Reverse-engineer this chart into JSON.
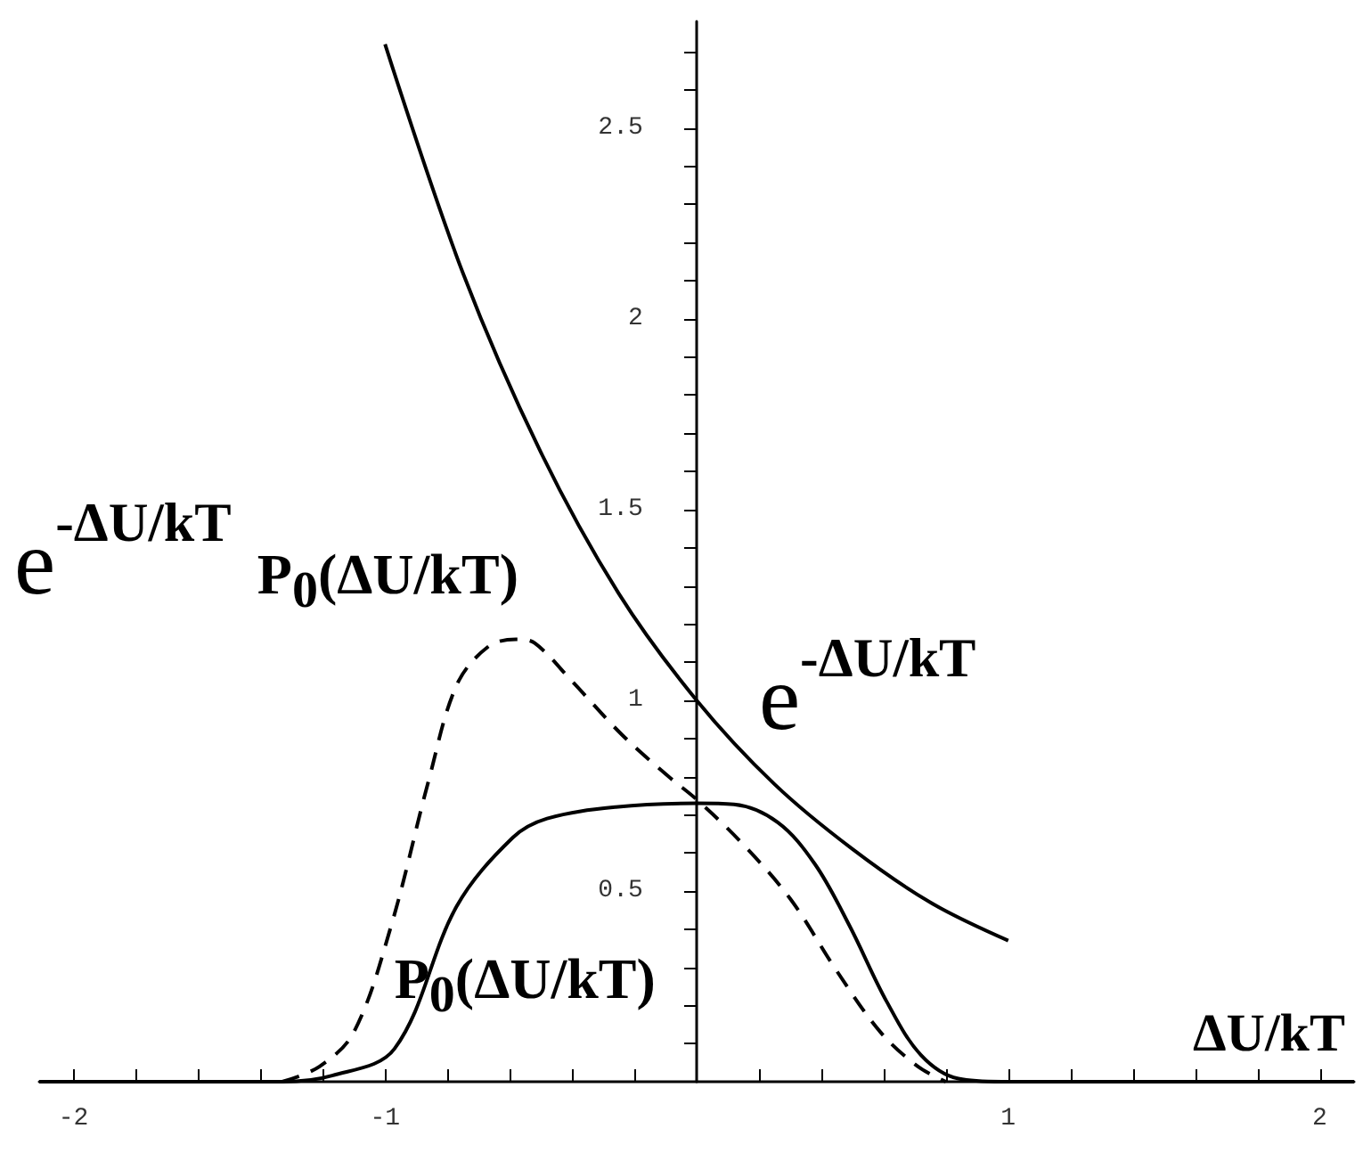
{
  "chart_data": {
    "type": "line",
    "xlabel": "ΔU/kT",
    "ylabel": "e$^{-ΔU/kT}$",
    "annotations": [
      "e$^{-ΔU/kT}$",
      "P$_{0}$(ΔU/kT)",
      "P$_{0}$(ΔU/kT)"
    ],
    "series": [
      {
        "color": "#000000",
        "line_style": "solid",
        "x": [
          -1,
          -0.75,
          -0.5,
          -0.25,
          0,
          0.25,
          0.5,
          0.75,
          1
        ],
        "values": [
          2.72,
          2.12,
          1.65,
          1.28,
          1.0,
          0.78,
          0.61,
          0.47,
          0.37
        ]
      },
      {
        "color": "#000000",
        "line_style": "solid",
        "x": [
          -2.11,
          -1.33,
          -1.17,
          -0.97,
          -0.77,
          -0.59,
          -0.48,
          -0.26,
          0,
          0.12,
          0.26,
          0.38,
          0.49,
          0.61,
          0.72,
          0.84,
          0.98,
          2.11
        ],
        "values": [
          0,
          0,
          0.016,
          0.086,
          0.46,
          0.64,
          0.69,
          0.72,
          0.73,
          0.727,
          0.68,
          0.57,
          0.41,
          0.21,
          0.07,
          0.008,
          0,
          0
        ]
      },
      {
        "color": "#000000",
        "line_style": "dashed",
        "x": [
          -1.33,
          -1.21,
          -1.1,
          -0.98,
          -0.86,
          -0.77,
          -0.67,
          -0.58,
          -0.52,
          -0.4,
          -0.24,
          -0.09,
          0,
          0.14,
          0.3,
          0.45,
          0.59,
          0.71,
          0.8
        ],
        "values": [
          0,
          0.04,
          0.13,
          0.41,
          0.79,
          1.04,
          1.14,
          1.16,
          1.15,
          1.05,
          0.91,
          0.8,
          0.74,
          0.63,
          0.48,
          0.29,
          0.13,
          0.04,
          0
        ]
      }
    ],
    "marker": "none",
    "grid": false,
    "xlim": [
      -2.11,
      2.11
    ],
    "xticks": [
      -2,
      {
        "value": -1.8,
        "label": null
      },
      {
        "value": -1.6,
        "label": null
      },
      {
        "value": -1.4,
        "label": null
      },
      {
        "value": -1.2,
        "label": null
      },
      -1,
      {
        "value": -0.8,
        "label": null
      },
      {
        "value": -0.6,
        "label": null
      },
      {
        "value": -0.4,
        "label": null
      },
      {
        "value": -0.2,
        "label": null
      },
      {
        "value": 0.2,
        "label": null
      },
      {
        "value": 0.4,
        "label": null
      },
      {
        "value": 0.6,
        "label": null
      },
      {
        "value": 0.8,
        "label": null
      },
      1,
      {
        "value": 1.2,
        "label": null
      },
      {
        "value": 1.4,
        "label": null
      },
      {
        "value": 1.6,
        "label": null
      },
      {
        "value": 1.8,
        "label": null
      },
      2
    ],
    "ylim": [
      0,
      2.78
    ],
    "yticks": [
      {
        "value": 0.1,
        "label": null
      },
      {
        "value": 0.2,
        "label": null
      },
      {
        "value": 0.3,
        "label": null
      },
      {
        "value": 0.4,
        "label": null
      },
      0.5,
      {
        "value": 0.6,
        "label": null
      },
      {
        "value": 0.7,
        "label": null
      },
      {
        "value": 0.8,
        "label": null
      },
      {
        "value": 0.9,
        "label": null
      },
      1,
      {
        "value": 1.1,
        "label": null
      },
      {
        "value": 1.2,
        "label": null
      },
      {
        "value": 1.3,
        "label": null
      },
      {
        "value": 1.4,
        "label": null
      },
      1.5,
      {
        "value": 1.6,
        "label": null
      },
      {
        "value": 1.7,
        "label": null
      },
      {
        "value": 1.8,
        "label": null
      },
      {
        "value": 1.9,
        "label": null
      },
      2,
      {
        "value": 2.1,
        "label": null
      },
      {
        "value": 2.2,
        "label": null
      },
      {
        "value": 2.3,
        "label": null
      },
      {
        "value": 2.4,
        "label": null
      },
      2.5,
      {
        "value": 2.6,
        "label": null
      },
      {
        "value": 2.7,
        "label": null
      }
    ]
  }
}
